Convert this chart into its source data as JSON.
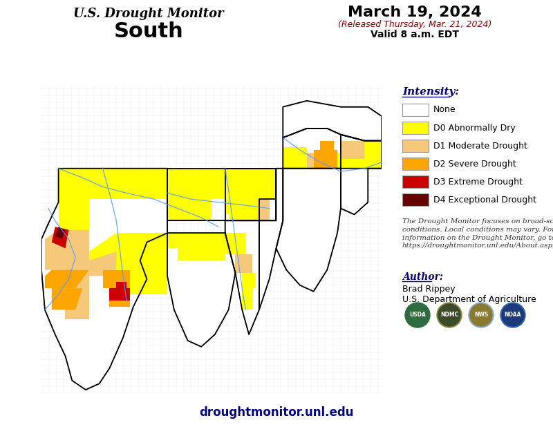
{
  "title_line1": "U.S. Drought Monitor",
  "title_line2": "South",
  "date_line1": "March 19, 2024",
  "date_line2": "(Released Thursday, Mar. 21, 2024)",
  "date_line3": "Valid 8 a.m. EDT",
  "legend_title": "Intensity:",
  "legend_items": [
    {
      "label": "None",
      "color": "#FFFFFF",
      "edgecolor": "#999999"
    },
    {
      "label": "D0 Abnormally Dry",
      "color": "#FFFF00",
      "edgecolor": "#999999"
    },
    {
      "label": "D1 Moderate Drought",
      "color": "#F5C87A",
      "edgecolor": "#999999"
    },
    {
      "label": "D2 Severe Drought",
      "color": "#FFA500",
      "edgecolor": "#999999"
    },
    {
      "label": "D3 Extreme Drought",
      "color": "#CC0000",
      "edgecolor": "#999999"
    },
    {
      "label": "D4 Exceptional Drought",
      "color": "#660000",
      "edgecolor": "#999999"
    }
  ],
  "disclaimer_text": "The Drought Monitor focuses on broad-scale\nconditions. Local conditions may vary. For more\ninformation on the Drought Monitor, go to\nhttps://droughtmonitor.unl.edu/About.aspx",
  "author_title": "Author:",
  "author_name": "Brad Rippey",
  "author_org": "U.S. Department of Agriculture",
  "website": "droughtmonitor.unl.edu",
  "bg_color": "#FFFFFF",
  "title1_fontsize": 13,
  "title2_fontsize": 22,
  "date1_fontsize": 16,
  "date2_fontsize": 9,
  "date3_fontsize": 10,
  "legend_title_fontsize": 11,
  "legend_item_fontsize": 9,
  "disclaimer_fontsize": 7.5,
  "author_title_fontsize": 10,
  "author_fontsize": 9,
  "website_fontsize": 12
}
